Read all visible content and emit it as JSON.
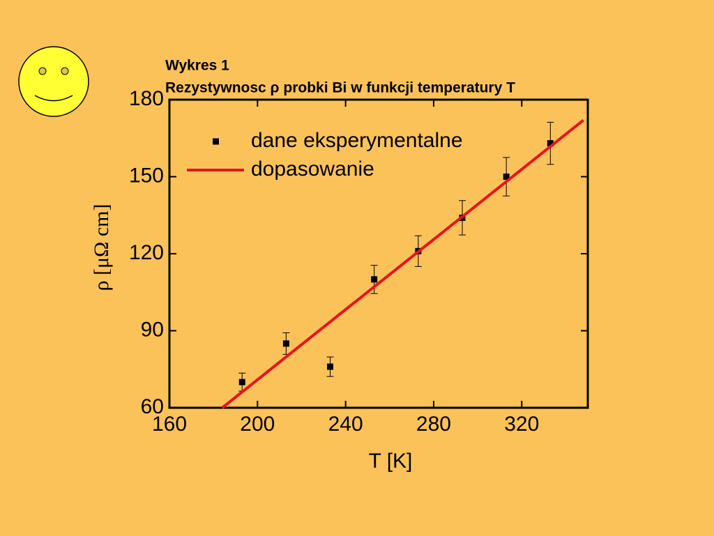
{
  "chart_data": {
    "type": "scatter",
    "title": "Wykres 1",
    "subtitle": "Rezystywnosc ρ probki  Bi w funkcji temperatury T",
    "x_label": "T [K]",
    "y_label": "ρ [μΩ cm]",
    "xlim": [
      160,
      350
    ],
    "ylim": [
      60,
      180
    ],
    "xticks": [
      160,
      200,
      240,
      280,
      320
    ],
    "yticks": [
      60,
      90,
      120,
      150,
      180
    ],
    "legend": "upper left",
    "series": [
      {
        "name": "dane eksperymentalne",
        "type": "scatter",
        "color": "#000000",
        "x": [
          193,
          213,
          233,
          253,
          273,
          293,
          313,
          333
        ],
        "values": [
          70,
          85,
          76,
          110,
          121,
          134,
          150,
          163
        ],
        "errors": [
          3.5,
          4.2,
          3.8,
          5.5,
          6,
          6.7,
          7.5,
          8.2
        ]
      },
      {
        "name": "dopasowanie",
        "type": "line",
        "color": "#e8141b",
        "x": [
          184,
          348
        ],
        "values": [
          60,
          172
        ]
      }
    ]
  }
}
